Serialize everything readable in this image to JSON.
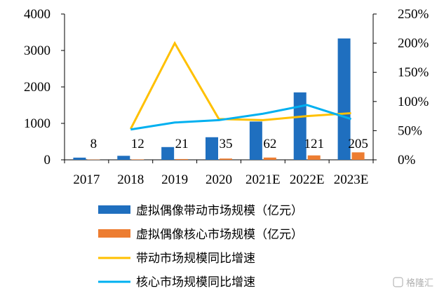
{
  "chart_data": {
    "type": "bar",
    "categories": [
      "2017",
      "2018",
      "2019",
      "2020",
      "2021E",
      "2022E",
      "2023E"
    ],
    "series": [
      {
        "name": "虚拟偶像带动市场规模（亿元）",
        "type": "bar",
        "axis": "left",
        "color": "#1f6fbf",
        "values": [
          60,
          110,
          350,
          620,
          1050,
          1850,
          3330
        ]
      },
      {
        "name": "虚拟偶像核心市场规模（亿元）",
        "type": "bar",
        "axis": "left",
        "color": "#ed7d31",
        "values": [
          8,
          12,
          21,
          35,
          62,
          121,
          205
        ],
        "data_labels": [
          "8",
          "12",
          "21",
          "35",
          "62",
          "121",
          "205"
        ]
      },
      {
        "name": "带动市场规模同比增速",
        "type": "line",
        "axis": "right",
        "color": "#ffc000",
        "values": [
          null,
          53,
          200,
          70,
          68,
          75,
          80
        ]
      },
      {
        "name": "核心市场规模同比增速",
        "type": "line",
        "axis": "right",
        "color": "#00b0f0",
        "values": [
          null,
          52,
          64,
          68,
          79,
          94,
          70
        ]
      }
    ],
    "y_left": {
      "ticks": [
        "0",
        "1000",
        "2000",
        "3000",
        "4000"
      ],
      "lim": [
        0,
        4000
      ]
    },
    "y_right": {
      "ticks": [
        "0%",
        "50%",
        "100%",
        "150%",
        "200%",
        "250%"
      ],
      "lim": [
        0,
        250
      ]
    },
    "legend_position": "bottom",
    "grid": false
  },
  "watermark": "格隆汇"
}
